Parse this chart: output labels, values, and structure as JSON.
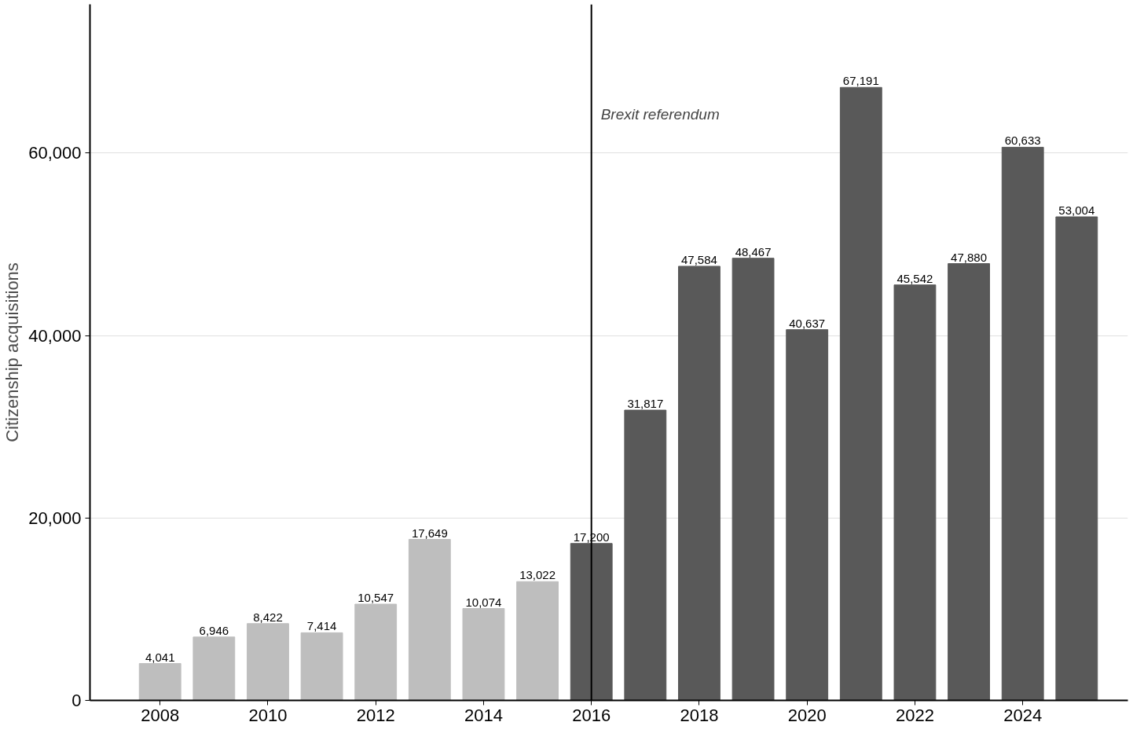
{
  "chart_data": {
    "type": "bar",
    "ylabel": "Citizenship acquisitions",
    "x": [
      2008,
      2009,
      2010,
      2011,
      2012,
      2013,
      2014,
      2015,
      2016,
      2017,
      2018,
      2019,
      2020,
      2021,
      2022,
      2023,
      2024,
      2025
    ],
    "values": [
      4041,
      6946,
      8422,
      7414,
      10547,
      17649,
      10074,
      13022,
      17200,
      31817,
      47584,
      48467,
      40637,
      67191,
      45542,
      47880,
      60633,
      53004
    ],
    "value_labels": [
      "4,041",
      "6,946",
      "8,422",
      "7,414",
      "10,547",
      "17,649",
      "10,074",
      "13,022",
      "17,200",
      "31,817",
      "47,584",
      "48,467",
      "40,637",
      "67,191",
      "45,542",
      "47,880",
      "60,633",
      "53,004"
    ],
    "colors": [
      "#bebebe",
      "#bebebe",
      "#bebebe",
      "#bebebe",
      "#bebebe",
      "#bebebe",
      "#bebebe",
      "#bebebe",
      "#595959",
      "#595959",
      "#595959",
      "#595959",
      "#595959",
      "#595959",
      "#595959",
      "#595959",
      "#595959",
      "#595959"
    ],
    "xlim": [
      2006.7,
      2025.95
    ],
    "xticks": [
      2008,
      2010,
      2012,
      2014,
      2016,
      2018,
      2020,
      2022,
      2024
    ],
    "ylim": [
      0,
      76300
    ],
    "yticks": [
      0,
      {
        "value": 20000,
        "label": "20,000"
      },
      {
        "value": 40000,
        "label": "40,000"
      },
      {
        "value": 60000,
        "label": "60,000"
      }
    ],
    "ref_lines": [
      {
        "axis": "x",
        "value": 2016,
        "label": "Brexit referendum",
        "color": "#000000"
      }
    ],
    "grid": "y"
  }
}
